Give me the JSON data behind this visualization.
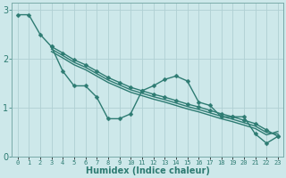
{
  "xlabel": "Humidex (Indice chaleur)",
  "xlim": [
    -0.5,
    23.5
  ],
  "ylim": [
    0,
    3.15
  ],
  "yticks": [
    0,
    1,
    2,
    3
  ],
  "xticks": [
    0,
    1,
    2,
    3,
    4,
    5,
    6,
    7,
    8,
    9,
    10,
    11,
    12,
    13,
    14,
    15,
    16,
    17,
    18,
    19,
    20,
    21,
    22,
    23
  ],
  "bg_color": "#cde8ea",
  "line_color": "#2d7b72",
  "grid_color": "#b0d0d3",
  "lines": [
    {
      "x": [
        0,
        1,
        2,
        3,
        4,
        5,
        6,
        7,
        8,
        9,
        10,
        11,
        12,
        13,
        14,
        15,
        16,
        17,
        18,
        19,
        20,
        21,
        22,
        23
      ],
      "y": [
        2.9,
        2.9,
        2.5,
        2.25,
        1.75,
        1.45,
        1.45,
        1.22,
        0.78,
        0.78,
        0.88,
        1.35,
        1.45,
        1.58,
        1.65,
        1.55,
        1.12,
        1.05,
        0.82,
        0.82,
        0.82,
        0.47,
        0.28,
        0.42
      ],
      "marker": "D",
      "ms": 2.5,
      "lw": 1.0
    },
    {
      "x": [
        3,
        23
      ],
      "y": [
        2.25,
        0.42
      ],
      "marker": "D",
      "ms": 2.5,
      "lw": 1.0
    },
    {
      "x": [
        3,
        23
      ],
      "y": [
        2.2,
        0.48
      ],
      "marker": null,
      "ms": 0,
      "lw": 1.0
    },
    {
      "x": [
        3,
        23
      ],
      "y": [
        2.15,
        0.54
      ],
      "marker": null,
      "ms": 0,
      "lw": 1.0
    }
  ],
  "smooth_lines": [
    {
      "x": [
        3,
        4,
        5,
        6,
        7,
        8,
        9,
        10,
        11,
        12,
        13,
        14,
        15,
        16,
        17,
        18,
        19,
        20,
        21,
        22,
        23
      ],
      "y": [
        2.25,
        2.12,
        1.98,
        1.88,
        1.75,
        1.62,
        1.52,
        1.42,
        1.35,
        1.28,
        1.22,
        1.15,
        1.08,
        1.02,
        0.95,
        0.88,
        0.82,
        0.75,
        0.68,
        0.55,
        0.42
      ],
      "marker": "D",
      "ms": 2.5,
      "lw": 1.0
    },
    {
      "x": [
        3,
        4,
        5,
        6,
        7,
        8,
        9,
        10,
        11,
        12,
        13,
        14,
        15,
        16,
        17,
        18,
        19,
        20,
        21,
        22,
        23
      ],
      "y": [
        2.2,
        2.07,
        1.93,
        1.83,
        1.7,
        1.57,
        1.47,
        1.37,
        1.3,
        1.23,
        1.17,
        1.1,
        1.03,
        0.97,
        0.9,
        0.83,
        0.77,
        0.7,
        0.63,
        0.5,
        0.47
      ],
      "marker": null,
      "ms": 0,
      "lw": 1.0
    },
    {
      "x": [
        3,
        4,
        5,
        6,
        7,
        8,
        9,
        10,
        11,
        12,
        13,
        14,
        15,
        16,
        17,
        18,
        19,
        20,
        21,
        22,
        23
      ],
      "y": [
        2.15,
        2.02,
        1.88,
        1.78,
        1.65,
        1.52,
        1.42,
        1.32,
        1.25,
        1.18,
        1.12,
        1.05,
        0.98,
        0.92,
        0.85,
        0.78,
        0.72,
        0.65,
        0.58,
        0.45,
        0.52
      ],
      "marker": null,
      "ms": 0,
      "lw": 1.0
    }
  ]
}
